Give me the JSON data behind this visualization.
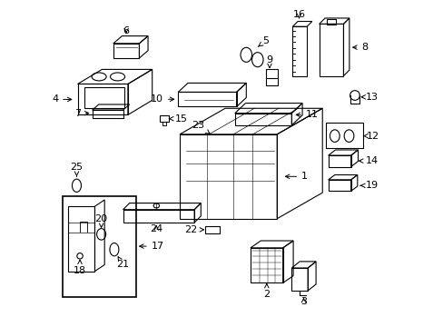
{
  "title": "",
  "background_color": "#ffffff",
  "border_color": "#000000",
  "line_color": "#000000",
  "text_color": "#000000",
  "fig_width": 4.89,
  "fig_height": 3.6,
  "dpi": 100
}
